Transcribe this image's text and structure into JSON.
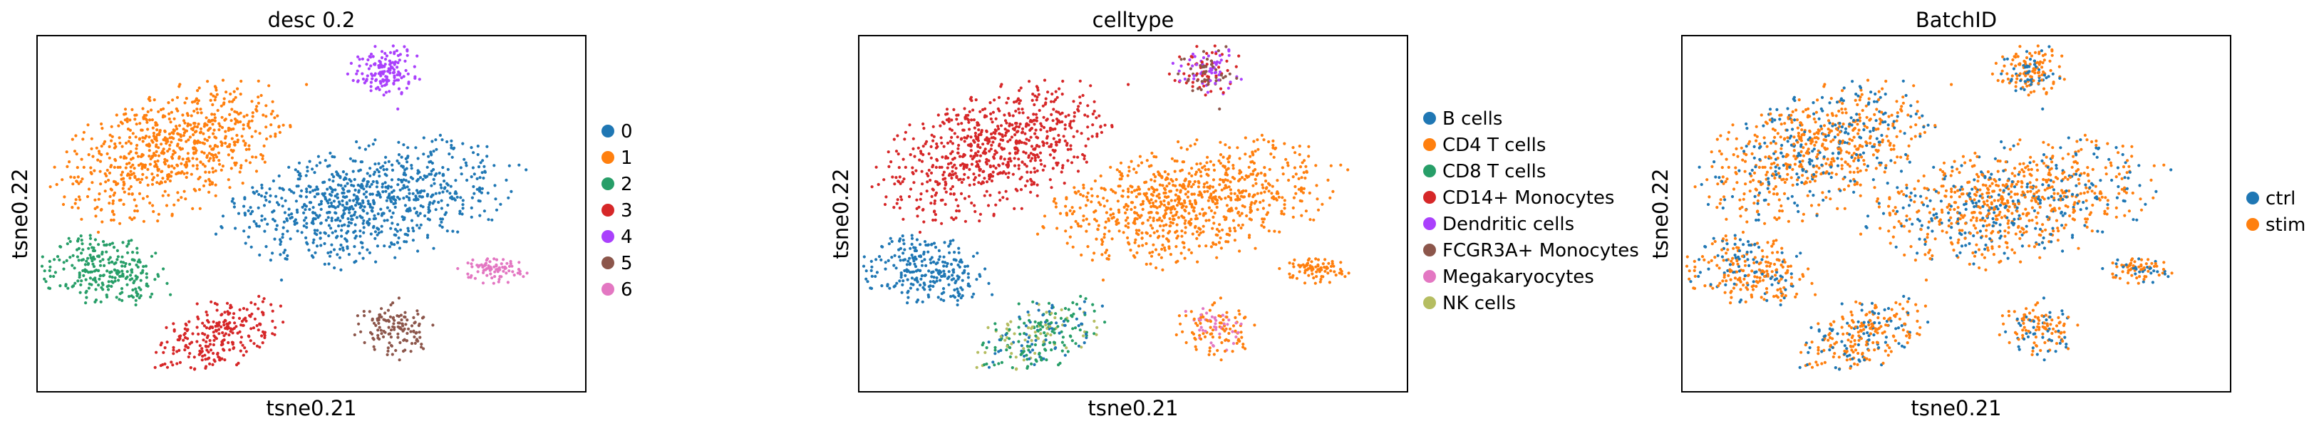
{
  "chart_data": [
    {
      "type": "scatter",
      "title": "desc 0.2",
      "xlabel": "tsne0.21",
      "ylabel": "tsne0.22",
      "legend_title": "",
      "legend_position": "right",
      "grid": false,
      "series": [
        {
          "name": "0",
          "color": "#1f77b4",
          "count": 800
        },
        {
          "name": "1",
          "color": "#ff7f0e",
          "count": 700
        },
        {
          "name": "2",
          "color": "#279e68",
          "count": 250
        },
        {
          "name": "3",
          "color": "#d62728",
          "count": 240
        },
        {
          "name": "4",
          "color": "#aa40fc",
          "count": 150
        },
        {
          "name": "5",
          "color": "#8c564b",
          "count": 120
        },
        {
          "name": "6",
          "color": "#e377c2",
          "count": 80
        }
      ]
    },
    {
      "type": "scatter",
      "title": "celltype",
      "xlabel": "tsne0.21",
      "ylabel": "tsne0.22",
      "legend_title": "",
      "legend_position": "right",
      "grid": false,
      "series": [
        {
          "name": "B cells",
          "color": "#1f77b4"
        },
        {
          "name": "CD4 T cells",
          "color": "#ff7f0e"
        },
        {
          "name": "CD8 T cells",
          "color": "#279e68"
        },
        {
          "name": "CD14+ Monocytes",
          "color": "#d62728"
        },
        {
          "name": "Dendritic cells",
          "color": "#aa40fc"
        },
        {
          "name": "FCGR3A+ Monocytes",
          "color": "#8c564b"
        },
        {
          "name": "Megakaryocytes",
          "color": "#e377c2"
        },
        {
          "name": "NK cells",
          "color": "#b5bd61"
        }
      ]
    },
    {
      "type": "scatter",
      "title": "BatchID",
      "xlabel": "tsne0.21",
      "ylabel": "tsne0.22",
      "legend_title": "",
      "legend_position": "right",
      "grid": false,
      "series": [
        {
          "name": "ctrl",
          "color": "#1f77b4"
        },
        {
          "name": "stim",
          "color": "#ff7f0e"
        }
      ]
    }
  ]
}
